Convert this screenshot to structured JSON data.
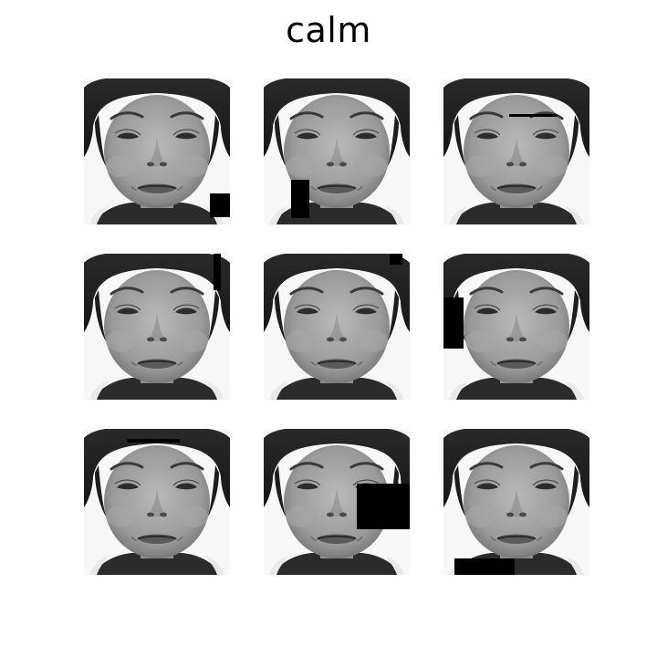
{
  "figure": {
    "title": "calm"
  },
  "grid": {
    "rows": 3,
    "cols": 3,
    "tiles": [
      {
        "image": "grayscale-face-photo",
        "occlusion": "black-rectangle"
      },
      {
        "image": "grayscale-face-photo",
        "occlusion": "black-rectangle"
      },
      {
        "image": "grayscale-face-photo",
        "occlusion": "black-line"
      },
      {
        "image": "grayscale-face-photo",
        "occlusion": "black-bar"
      },
      {
        "image": "grayscale-face-photo",
        "occlusion": "black-rectangle"
      },
      {
        "image": "grayscale-face-photo",
        "occlusion": "black-rectangle"
      },
      {
        "image": "grayscale-face-photo",
        "occlusion": "black-line"
      },
      {
        "image": "grayscale-face-photo",
        "occlusion": "black-rectangle"
      },
      {
        "image": "grayscale-face-photo",
        "occlusion": "black-rectangle"
      }
    ]
  }
}
